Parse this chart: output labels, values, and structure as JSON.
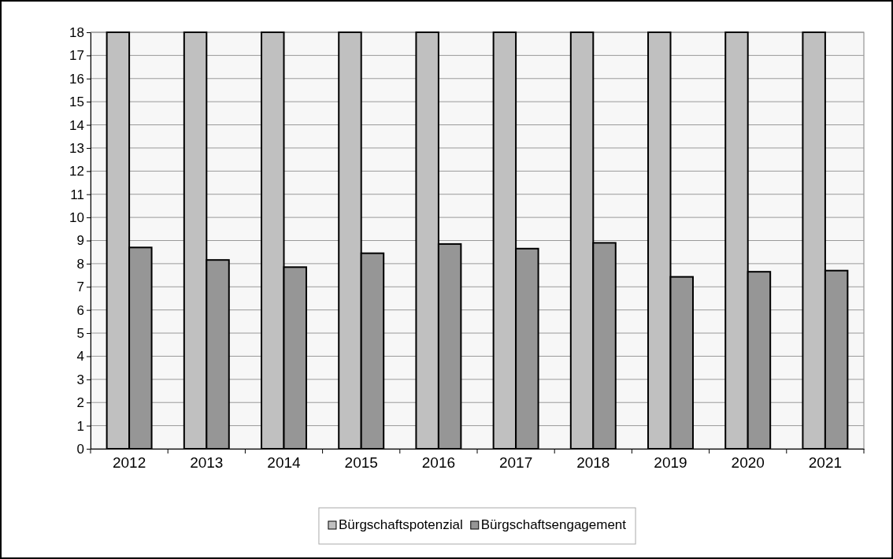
{
  "chart_data": {
    "type": "bar",
    "categories": [
      "2012",
      "2013",
      "2014",
      "2015",
      "2016",
      "2017",
      "2018",
      "2019",
      "2020",
      "2021"
    ],
    "series": [
      {
        "name": "Bürgschaftspotenzial",
        "color": "#c0c0c0",
        "values": [
          18,
          18,
          18,
          18,
          18,
          18,
          18,
          18,
          18,
          18
        ]
      },
      {
        "name": "Bürgschaftsengagement",
        "color": "#969696",
        "values": [
          8.7,
          8.16,
          7.85,
          8.45,
          8.85,
          8.65,
          8.9,
          7.43,
          7.65,
          7.7
        ]
      }
    ],
    "ylim": [
      0,
      18
    ],
    "yticks": [
      0,
      1,
      2,
      3,
      4,
      5,
      6,
      7,
      8,
      9,
      10,
      11,
      12,
      13,
      14,
      15,
      16,
      17,
      18
    ],
    "grid": "y",
    "legend": "bottom"
  }
}
